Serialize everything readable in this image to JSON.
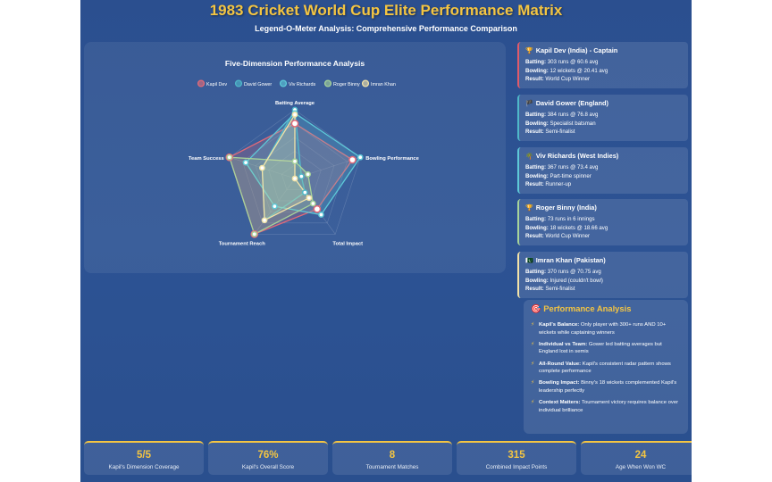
{
  "title": "1983 Cricket World Cup Elite Performance Matrix",
  "subtitle": "Legend-O-Meter Analysis: Comprehensive Performance Comparison",
  "colors": {
    "accent": "#f4c542",
    "background": "#2b4f8f"
  },
  "chart_data": {
    "type": "radar",
    "title": "Five-Dimension Performance Analysis",
    "axes": [
      "Batting Average",
      "Bowling Performance",
      "Total Impact",
      "Tournament Reach",
      "Team Success"
    ],
    "max": 100,
    "legend_position": "top",
    "series": [
      {
        "name": "Kapil Dev",
        "color": "#e36a78",
        "values": [
          80,
          88,
          55,
          100,
          100
        ]
      },
      {
        "name": "David Gower",
        "color": "#4fb8c9",
        "values": [
          100,
          10,
          25,
          75,
          50
        ]
      },
      {
        "name": "Viv Richards",
        "color": "#5ec9d8",
        "values": [
          95,
          100,
          65,
          50,
          75
        ]
      },
      {
        "name": "Roger Binny",
        "color": "#a7d49a",
        "values": [
          25,
          20,
          45,
          100,
          100
        ]
      },
      {
        "name": "Imran Khan",
        "color": "#f3e3a8",
        "values": [
          93,
          0,
          35,
          75,
          50
        ]
      }
    ]
  },
  "players": [
    {
      "flag": "🏆",
      "name": "Kapil Dev (India) - Captain",
      "batting_label": "Batting:",
      "batting": "303 runs @ 60.6 avg",
      "bowling_label": "Bowling:",
      "bowling": "12 wickets @ 20.41 avg",
      "result_label": "Result:",
      "result": "World Cup Winner",
      "border": "#e05a6a"
    },
    {
      "flag": "🏴",
      "name": "David Gower (England)",
      "batting_label": "Batting:",
      "batting": "384 runs @ 76.8 avg",
      "bowling_label": "Bowling:",
      "bowling": "Specialist batsman",
      "result_label": "Result:",
      "result": "Semi-finalist",
      "border": "#4fb8c9"
    },
    {
      "flag": "🌴",
      "name": "Viv Richards (West Indies)",
      "batting_label": "Batting:",
      "batting": "367 runs @ 73.4 avg",
      "bowling_label": "Bowling:",
      "bowling": "Part-time spinner",
      "result_label": "Result:",
      "result": "Runner-up",
      "border": "#5ec9d8"
    },
    {
      "flag": "🏆",
      "name": "Roger Binny (India)",
      "batting_label": "Batting:",
      "batting": "73 runs in 6 innings",
      "bowling_label": "Bowling:",
      "bowling": "18 wickets @ 18.66 avg",
      "result_label": "Result:",
      "result": "World Cup Winner",
      "border": "#a7d49a"
    },
    {
      "flag": "🇵🇰",
      "name": "Imran Khan (Pakistan)",
      "batting_label": "Batting:",
      "batting": "370 runs @ 70.75 avg",
      "bowling_label": "Bowling:",
      "bowling": "Injured (couldn't bowl)",
      "result_label": "Result:",
      "result": "Semi-finalist",
      "border": "#f3e3a8"
    }
  ],
  "analysis": {
    "icon": "🎯",
    "heading": "Performance Analysis",
    "items": [
      {
        "label": "Kapil's Balance:",
        "text": "Only player with 300+ runs AND 10+ wickets while captaining winners"
      },
      {
        "label": "Individual vs Team:",
        "text": "Gower led batting averages but England lost in semis"
      },
      {
        "label": "All-Round Value:",
        "text": "Kapil's consistent radar pattern shows complete performance"
      },
      {
        "label": "Bowling Impact:",
        "text": "Binny's 18 wickets complemented Kapil's leadership perfectly"
      },
      {
        "label": "Context Matters:",
        "text": "Tournament victory requires balance over individual brilliance"
      }
    ]
  },
  "stats": [
    {
      "value": "5/5",
      "label": "Kapil's Dimension Coverage"
    },
    {
      "value": "76%",
      "label": "Kapil's Overall Score"
    },
    {
      "value": "8",
      "label": "Tournament Matches"
    },
    {
      "value": "315",
      "label": "Combined Impact Points"
    },
    {
      "value": "24",
      "label": "Age When Won WC"
    }
  ]
}
